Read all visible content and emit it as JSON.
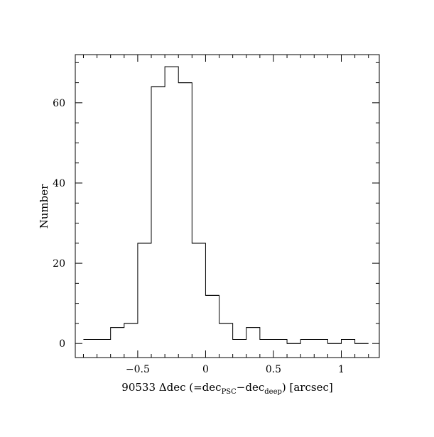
{
  "chart_data": {
    "type": "histogram",
    "xlabel": {
      "prefix": "90533 Δdec (=dec",
      "sub1": "PSC",
      "mid": "−dec",
      "sub2": "deep",
      "suffix": ") [arcsec]"
    },
    "ylabel": "Number",
    "xlim": [
      -0.96,
      1.28
    ],
    "ylim": [
      -3.5,
      72
    ],
    "x_ticks": [
      -0.5,
      0,
      0.5,
      1
    ],
    "x_tick_labels": [
      "−0.5",
      "0",
      "0.5",
      "1"
    ],
    "y_ticks": [
      0,
      20,
      40,
      60
    ],
    "y_tick_labels": [
      "0",
      "20",
      "40",
      "60"
    ],
    "x_minor_step": 0.1,
    "y_minor_step": 5,
    "bin_edges": [
      -0.9,
      -0.8,
      -0.7,
      -0.6,
      -0.5,
      -0.4,
      -0.3,
      -0.2,
      -0.1,
      0.0,
      0.1,
      0.2,
      0.3,
      0.4,
      0.5,
      0.6,
      0.7,
      0.8,
      0.9,
      1.0,
      1.1,
      1.2
    ],
    "counts": [
      1,
      1,
      4,
      5,
      25,
      64,
      69,
      65,
      25,
      12,
      5,
      1,
      4,
      1,
      1,
      0,
      1,
      1,
      0,
      1,
      0
    ],
    "grid": false,
    "legend": "none"
  }
}
